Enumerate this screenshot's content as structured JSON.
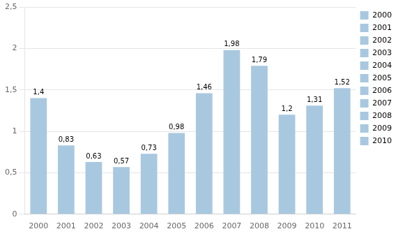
{
  "chart_data": {
    "type": "bar",
    "categories": [
      "2000",
      "2001",
      "2002",
      "2003",
      "2004",
      "2005",
      "2006",
      "2007",
      "2008",
      "2009",
      "2010",
      "2011"
    ],
    "values": [
      1.4,
      0.83,
      0.63,
      0.57,
      0.73,
      0.98,
      1.46,
      1.98,
      1.79,
      1.2,
      1.31,
      1.52
    ],
    "value_labels": [
      "1,4",
      "0,83",
      "0,63",
      "0,57",
      "0,73",
      "0,98",
      "1,46",
      "1,98",
      "1,79",
      "1,2",
      "1,31",
      "1,52"
    ],
    "data_labels": true,
    "color": "#a8c8e0",
    "ylim": [
      0,
      2.5
    ],
    "yticks": [
      0,
      {
        "value": 0.5,
        "label": "0,5"
      },
      1,
      {
        "value": 1.5,
        "label": "1,5"
      },
      2,
      {
        "value": 2.5,
        "label": "2,5"
      }
    ],
    "grid": true,
    "legend": "upper right",
    "legend_labels": [
      "2000",
      "2001",
      "2002",
      "2003",
      "2004",
      "2005",
      "2006",
      "2007",
      "2008",
      "2009",
      "2010"
    ]
  }
}
